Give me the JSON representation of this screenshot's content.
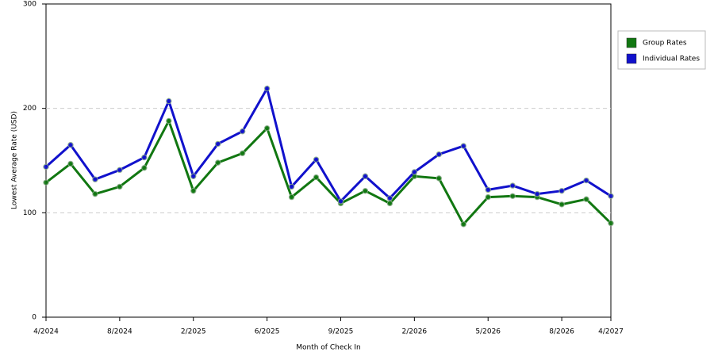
{
  "chart_data": {
    "type": "line",
    "x_label": "Month of Check In",
    "y_label": "Lowest Average Rate (USD)",
    "categories": [
      "4/2024",
      null,
      null,
      "8/2024",
      null,
      null,
      "2/2025",
      null,
      null,
      "6/2025",
      null,
      null,
      "9/2025",
      null,
      null,
      "2/2026",
      null,
      null,
      "5/2026",
      null,
      null,
      "8/2026",
      null,
      "4/2027"
    ],
    "series": [
      {
        "name": "Group Rates",
        "color": "#117711",
        "values": [
          129,
          147,
          118,
          125,
          143,
          188,
          121,
          148,
          157,
          181,
          115,
          134,
          109,
          121,
          109,
          135,
          133,
          89,
          115,
          116,
          115,
          108,
          113,
          90
        ]
      },
      {
        "name": "Individual Rates",
        "color": "#1111cc",
        "values": [
          144,
          165,
          132,
          141,
          153,
          207,
          135,
          166,
          178,
          219,
          125,
          151,
          111,
          135,
          114,
          139,
          156,
          164,
          122,
          126,
          118,
          121,
          131,
          116
        ]
      }
    ],
    "ylim": [
      0,
      300
    ],
    "yticks": [
      0,
      100,
      200,
      300
    ],
    "grid": true,
    "legend": "right"
  }
}
